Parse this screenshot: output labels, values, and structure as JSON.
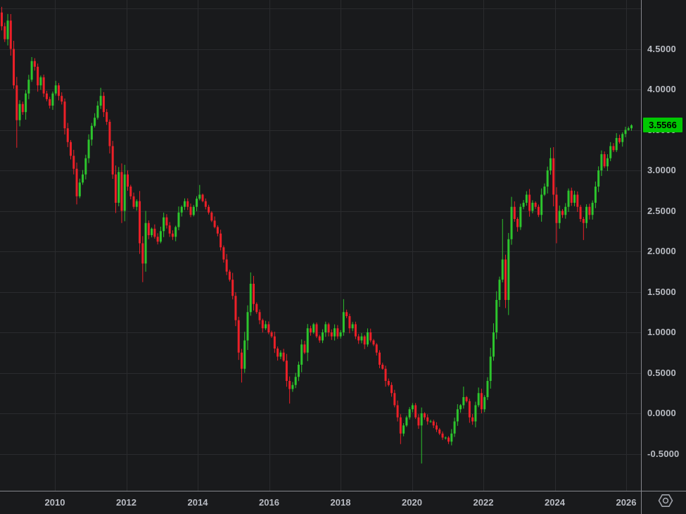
{
  "window": {
    "background_color": "#191a1c",
    "grid_color": "#2a2b2e",
    "axis_line_color": "#85878d",
    "axis_text_color": "#b9bcc3"
  },
  "price_axis": {
    "last_price_label": "3.5566",
    "last_price_box_color": "#00c802",
    "last_price_text_color": "#000000"
  },
  "icons": {
    "scale_settings_icon": "hexagon-with-ring",
    "scale_settings_color": "#a0a3ab"
  },
  "chart_data": {
    "type": "candlestick",
    "title": "",
    "legend_position": "none",
    "grid": true,
    "up_color": "#2dc52d",
    "down_color": "#ec2028",
    "y_axis": {
      "side": "right",
      "tick_labels": [
        "4.5000",
        "4.0000",
        "3.5000",
        "3.0000",
        "2.5000",
        "2.0000",
        "1.5000",
        "1.0000",
        "0.5000",
        "0.0000",
        "-0.5000"
      ],
      "tick_values": [
        4.5,
        4.0,
        3.5,
        3.0,
        2.5,
        2.0,
        1.5,
        1.0,
        0.5,
        0.0,
        -0.5
      ],
      "unlabeled_gridlines": [
        5.0
      ],
      "visible_range": [
        -0.96,
        5.1
      ]
    },
    "x_axis": {
      "side": "bottom",
      "tick_labels": [
        "2010",
        "2012",
        "2014",
        "2016",
        "2018",
        "2020",
        "2022",
        "2024",
        "2026"
      ],
      "tick_values": [
        2010,
        2012,
        2014,
        2016,
        2018,
        2020,
        2022,
        2024,
        2026
      ],
      "visible_range_years": [
        2008.5,
        2026.3
      ]
    },
    "last_price": 3.5566,
    "series": {
      "note": "approximate monthly closes read from chart",
      "start": "2008-07",
      "interval_months": 1,
      "first_open": 4.95,
      "closes": [
        4.78,
        4.62,
        4.85,
        4.5,
        4.05,
        3.62,
        3.82,
        3.72,
        3.95,
        4.12,
        4.35,
        4.28,
        4.05,
        4.15,
        3.95,
        3.88,
        3.8,
        3.95,
        4.05,
        3.92,
        3.85,
        3.52,
        3.35,
        3.18,
        3.02,
        2.68,
        2.85,
        2.95,
        3.15,
        3.38,
        3.55,
        3.65,
        3.8,
        3.92,
        3.72,
        3.6,
        3.3,
        2.95,
        2.6,
        2.98,
        2.5,
        2.95,
        2.8,
        2.68,
        2.55,
        2.62,
        2.1,
        1.85,
        2.35,
        2.2,
        2.28,
        2.18,
        2.12,
        2.25,
        2.42,
        2.32,
        2.22,
        2.18,
        2.3,
        2.48,
        2.55,
        2.62,
        2.55,
        2.45,
        2.55,
        2.65,
        2.7,
        2.62,
        2.55,
        2.48,
        2.38,
        2.3,
        2.22,
        2.05,
        1.9,
        1.75,
        1.65,
        1.45,
        1.15,
        0.75,
        0.55,
        0.9,
        1.25,
        1.6,
        1.35,
        1.25,
        1.15,
        1.05,
        1.1,
        1.0,
        0.95,
        0.8,
        0.7,
        0.75,
        0.65,
        0.4,
        0.3,
        0.35,
        0.45,
        0.6,
        0.85,
        0.75,
        1.05,
        1.0,
        1.1,
        0.95,
        0.9,
        1.0,
        1.1,
        1.0,
        0.95,
        1.05,
        0.95,
        1.0,
        1.25,
        1.2,
        1.05,
        1.1,
        0.95,
        0.9,
        0.95,
        0.85,
        1.0,
        0.9,
        0.85,
        0.75,
        0.6,
        0.55,
        0.4,
        0.35,
        0.25,
        0.1,
        -0.05,
        -0.25,
        -0.15,
        -0.05,
        0.05,
        0.1,
        -0.05,
        -0.15,
        0.0,
        -0.05,
        -0.1,
        -0.1,
        -0.15,
        -0.2,
        -0.25,
        -0.3,
        -0.3,
        -0.35,
        -0.25,
        -0.1,
        0.05,
        0.1,
        0.2,
        0.15,
        -0.05,
        -0.1,
        0.1,
        0.25,
        0.05,
        0.2,
        0.4,
        0.7,
        1.0,
        1.4,
        1.65,
        1.9,
        1.4,
        2.15,
        2.55,
        2.4,
        2.3,
        2.55,
        2.6,
        2.7,
        2.5,
        2.6,
        2.55,
        2.45,
        2.7,
        2.8,
        3.0,
        3.15,
        2.7,
        2.35,
        2.5,
        2.45,
        2.55,
        2.75,
        2.6,
        2.7,
        2.55,
        2.4,
        2.35,
        2.55,
        2.45,
        2.6,
        2.8,
        3.0,
        3.2,
        3.05,
        3.15,
        3.3,
        3.25,
        3.4,
        3.35,
        3.45,
        3.5,
        3.52,
        3.5566
      ],
      "extremes": {
        "0": {
          "high": 5.02
        },
        "5": {
          "low": 3.28
        },
        "10": {
          "high": 4.4
        },
        "25": {
          "low": 2.58
        },
        "33": {
          "high": 4.02
        },
        "40": {
          "low": 2.35
        },
        "47": {
          "low": 1.62
        },
        "66": {
          "high": 2.82
        },
        "80": {
          "low": 0.38
        },
        "83": {
          "high": 1.74
        },
        "96": {
          "low": 0.12
        },
        "114": {
          "high": 1.41
        },
        "133": {
          "low": -0.38
        },
        "140": {
          "low": -0.62
        },
        "154": {
          "high": 0.33
        },
        "167": {
          "high": 2.4
        },
        "183": {
          "high": 3.28
        },
        "185": {
          "low": 2.1
        },
        "194": {
          "low": 2.14
        },
        "210": {
          "high": 3.57
        }
      }
    }
  }
}
